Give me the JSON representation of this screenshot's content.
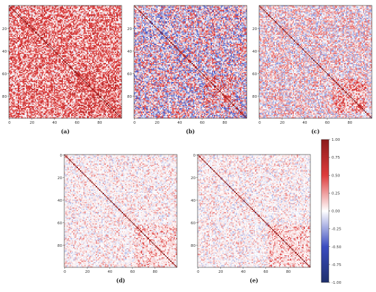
{
  "chart_data": [
    {
      "type": "heatmap",
      "panel_label": "(a)",
      "matrix_size": 100,
      "x_ticks": [
        "0",
        "20",
        "40",
        "60",
        "80"
      ],
      "y_ticks": [
        "20",
        "40",
        "60",
        "80"
      ],
      "diagonal_value": 1.0,
      "off_diagonal_mean": 0.3,
      "off_diagonal_spread": 0.4,
      "blocks": [
        {
          "range": [
            60,
            95
          ],
          "mean_boost": 0.15
        }
      ]
    },
    {
      "type": "heatmap",
      "panel_label": "(b)",
      "matrix_size": 100,
      "x_ticks": [
        "0",
        "20",
        "40",
        "60",
        "80"
      ],
      "y_ticks": [
        "20",
        "40",
        "60",
        "80"
      ],
      "diagonal_value": 1.0,
      "off_diagonal_mean": 0.02,
      "off_diagonal_spread": 0.5,
      "blocks": [
        {
          "range": [
            62,
            90
          ],
          "mean_boost": 0.3
        }
      ]
    },
    {
      "type": "heatmap",
      "panel_label": "(c)",
      "matrix_size": 100,
      "x_ticks": [
        "0",
        "20",
        "40",
        "60",
        "80"
      ],
      "y_ticks": [
        "20",
        "40",
        "60",
        "80"
      ],
      "diagonal_value": 1.0,
      "off_diagonal_mean": 0.05,
      "off_diagonal_spread": 0.35,
      "blocks": [
        {
          "range": [
            65,
            95
          ],
          "mean_boost": 0.3
        }
      ]
    },
    {
      "type": "heatmap",
      "panel_label": "(d)",
      "matrix_size": 100,
      "x_ticks": [
        "0",
        "20",
        "40",
        "60",
        "80"
      ],
      "y_ticks": [
        "0",
        "20",
        "40",
        "60",
        "80"
      ],
      "diagonal_value": 1.0,
      "off_diagonal_mean": 0.05,
      "off_diagonal_spread": 0.25,
      "blocks": [
        {
          "range": [
            62,
            100
          ],
          "mean_boost": 0.25
        }
      ]
    },
    {
      "type": "heatmap",
      "panel_label": "(e)",
      "matrix_size": 100,
      "x_ticks": [
        "0",
        "20",
        "40",
        "60",
        "80"
      ],
      "y_ticks": [
        "0",
        "20",
        "40",
        "60",
        "80"
      ],
      "diagonal_value": 1.0,
      "off_diagonal_mean": 0.05,
      "off_diagonal_spread": 0.25,
      "blocks": [
        {
          "range": [
            62,
            100
          ],
          "mean_boost": 0.25
        }
      ]
    }
  ],
  "colorbar": {
    "ticks": [
      "1.00",
      "0.75",
      "0.50",
      "0.25",
      "0.00",
      "-0.25",
      "-0.50",
      "-0.75",
      "-1.00"
    ],
    "range": [
      -1.0,
      1.0
    ],
    "colormap": "seismic-like",
    "color_low": "#1e2f6b",
    "color_mid": "#ffffff",
    "color_high": "#8b1a1a"
  }
}
